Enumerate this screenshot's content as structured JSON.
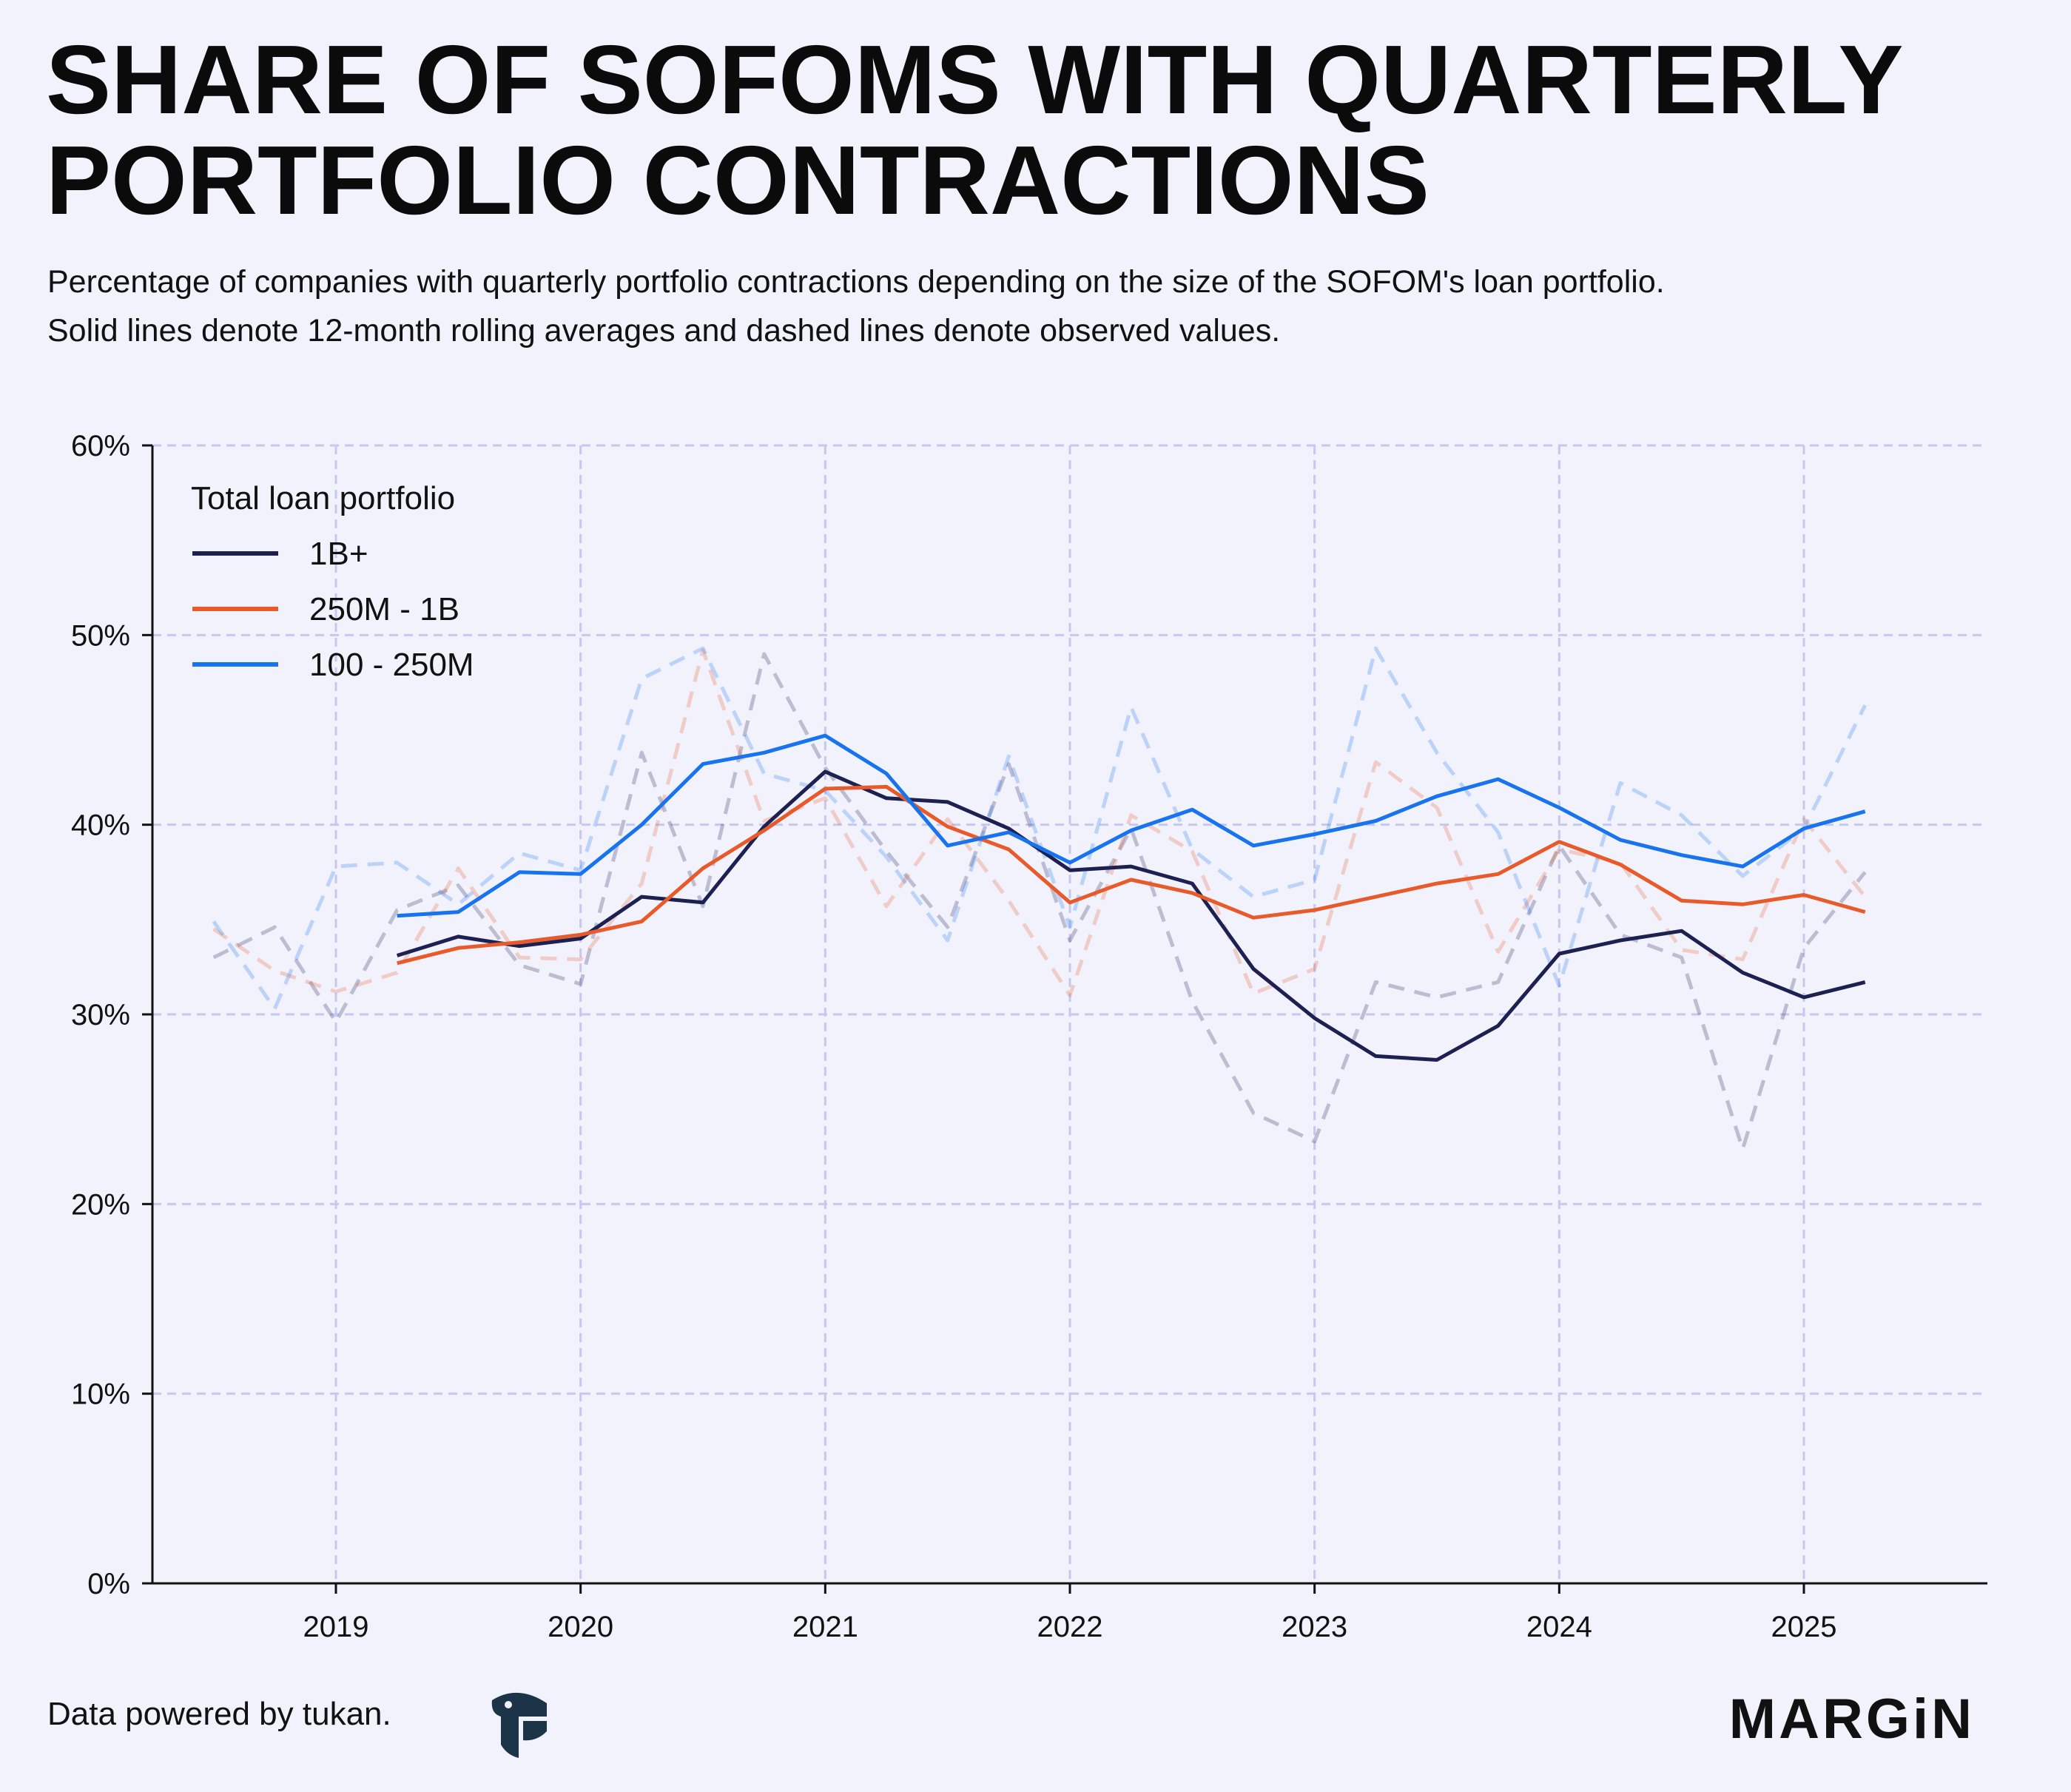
{
  "header": {
    "title": "SHARE OF SOFOMS WITH QUARTERLY PORTFOLIO CONTRACTIONS",
    "subtitle_line1": "Percentage of companies with quarterly portfolio contractions depending on the size of the SOFOM's loan portfolio.",
    "subtitle_line2": "Solid lines denote 12-month rolling averages and dashed lines denote observed values."
  },
  "footer": {
    "credit": "Data powered by tukan.",
    "brand": "MARGiN",
    "logo_icon": "tukan-logo-icon"
  },
  "chart_data": {
    "type": "line",
    "legend_title": "Total loan portfolio",
    "legend_position": "top-left",
    "grid": true,
    "x_ticks": [
      "2019",
      "2020",
      "2021",
      "2022",
      "2023",
      "2024",
      "2025"
    ],
    "x_range": [
      "2018-Q2",
      "2025-Q4"
    ],
    "ylim": [
      0,
      60
    ],
    "y_ticks": [
      "0%",
      "10%",
      "20%",
      "30%",
      "40%",
      "50%",
      "60%"
    ],
    "x": [
      "2018-Q3",
      "2018-Q4",
      "2019-Q1",
      "2019-Q2",
      "2019-Q3",
      "2019-Q4",
      "2020-Q1",
      "2020-Q2",
      "2020-Q3",
      "2020-Q4",
      "2021-Q1",
      "2021-Q2",
      "2021-Q3",
      "2021-Q4",
      "2022-Q1",
      "2022-Q2",
      "2022-Q3",
      "2022-Q4",
      "2023-Q1",
      "2023-Q2",
      "2023-Q3",
      "2023-Q4",
      "2024-Q1",
      "2024-Q2",
      "2024-Q3",
      "2024-Q4",
      "2025-Q1",
      "2025-Q2"
    ],
    "series": [
      {
        "name": "1B+",
        "color": "#1c2152",
        "rolling": [
          null,
          null,
          null,
          33.1,
          34.1,
          33.6,
          34.0,
          36.2,
          35.9,
          39.9,
          42.8,
          41.4,
          41.2,
          39.8,
          37.6,
          37.8,
          36.9,
          32.4,
          29.8,
          27.8,
          27.6,
          29.4,
          33.2,
          33.9,
          34.4,
          32.2,
          30.9,
          31.7
        ],
        "observed": [
          33.0,
          34.6,
          29.6,
          35.5,
          36.8,
          32.6,
          31.6,
          43.8,
          35.7,
          49.0,
          43.0,
          38.6,
          34.6,
          43.2,
          33.9,
          39.8,
          30.7,
          24.8,
          23.3,
          31.7,
          30.9,
          31.7,
          38.9,
          34.2,
          33.0,
          22.9,
          33.5,
          37.5
        ]
      },
      {
        "name": "250M - 1B",
        "color": "#e85a2a",
        "rolling": [
          null,
          null,
          null,
          32.7,
          33.5,
          33.8,
          34.2,
          34.9,
          37.7,
          39.7,
          41.9,
          42.0,
          39.9,
          38.7,
          35.9,
          37.1,
          36.4,
          35.1,
          35.5,
          36.2,
          36.9,
          37.4,
          39.1,
          37.9,
          36.0,
          35.8,
          36.3,
          35.4
        ],
        "observed": [
          34.5,
          32.3,
          31.2,
          32.2,
          37.7,
          33.0,
          32.9,
          36.9,
          49.2,
          40.2,
          41.4,
          35.7,
          40.3,
          36.0,
          31.0,
          40.5,
          38.6,
          31.1,
          32.4,
          43.3,
          40.9,
          33.3,
          38.7,
          38.0,
          33.4,
          32.9,
          40.3,
          36.2
        ]
      },
      {
        "name": "100 - 250M",
        "color": "#1773ee",
        "rolling": [
          null,
          null,
          null,
          35.2,
          35.4,
          37.5,
          37.4,
          40.0,
          43.2,
          43.8,
          44.7,
          42.7,
          38.9,
          39.6,
          38.0,
          39.7,
          40.8,
          38.9,
          39.5,
          40.2,
          41.5,
          42.4,
          40.9,
          39.2,
          38.4,
          37.8,
          39.8,
          40.7
        ],
        "observed": [
          34.9,
          30.3,
          37.8,
          38.0,
          35.8,
          38.5,
          37.6,
          47.7,
          49.3,
          42.7,
          41.8,
          38.3,
          33.9,
          43.6,
          34.6,
          46.2,
          38.7,
          36.2,
          37.1,
          49.3,
          43.8,
          39.6,
          31.5,
          42.2,
          40.5,
          37.3,
          39.8,
          46.3
        ]
      }
    ]
  }
}
